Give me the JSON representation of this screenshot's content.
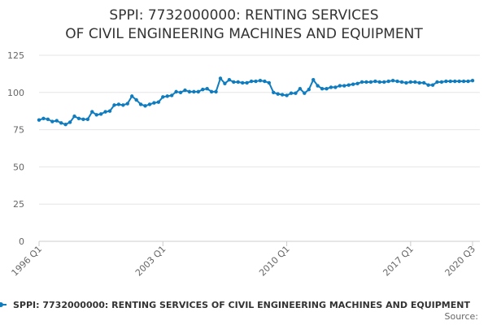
{
  "chart_data": {
    "type": "line",
    "title": "SPPI: 7732000000: RENTING SERVICES OF CIVIL ENGINEERING MACHINES AND EQUIPMENT",
    "source": "Source:",
    "categories": [
      "1996 Q1",
      null,
      null,
      null,
      null,
      null,
      null,
      null,
      null,
      null,
      null,
      null,
      null,
      null,
      null,
      null,
      null,
      null,
      null,
      null,
      null,
      null,
      null,
      null,
      null,
      null,
      null,
      null,
      "2003 Q1",
      null,
      null,
      null,
      null,
      null,
      null,
      null,
      null,
      null,
      null,
      null,
      null,
      null,
      null,
      null,
      null,
      null,
      null,
      null,
      null,
      null,
      null,
      null,
      null,
      null,
      null,
      null,
      "2010 Q1",
      null,
      null,
      null,
      null,
      null,
      null,
      null,
      null,
      null,
      null,
      null,
      null,
      null,
      null,
      null,
      null,
      null,
      null,
      null,
      null,
      null,
      null,
      null,
      null,
      null,
      null,
      null,
      "2017 Q1",
      null,
      null,
      null,
      null,
      null,
      null,
      null,
      null,
      null,
      null,
      null,
      null,
      null,
      "2020 Q3"
    ],
    "series": [
      {
        "name": "SPPI: 7732000000: RENTING SERVICES OF CIVIL ENGINEERING MACHINES AND EQUIPMENT",
        "color": "#0f7cbf",
        "values": [
          81.5,
          82.5,
          82,
          80.5,
          81,
          79.5,
          78.5,
          80,
          84,
          82.5,
          82,
          82,
          87,
          85,
          85.5,
          87,
          87.5,
          91.5,
          92,
          91.5,
          92.5,
          97.5,
          95,
          92,
          91,
          92,
          93,
          93.5,
          97,
          97.5,
          98,
          100.5,
          100,
          101.5,
          100.5,
          100.5,
          100.5,
          102,
          102.5,
          100.5,
          100.5,
          109.5,
          106,
          108.5,
          107,
          107,
          106.5,
          106.5,
          107.5,
          107.5,
          108,
          107.5,
          106.5,
          100,
          99,
          98.5,
          98,
          99.5,
          99.5,
          102.5,
          99.5,
          102,
          108.5,
          104.5,
          102.5,
          102.5,
          103.5,
          103.5,
          104.5,
          104.5,
          105,
          105.5,
          106,
          107,
          107,
          107,
          107.5,
          107,
          107,
          107.5,
          108,
          107.5,
          107,
          106.5,
          107,
          107,
          106.5,
          106.5,
          105,
          105,
          107,
          107,
          107.5,
          107.5,
          107.5,
          107.5,
          107.5,
          107.5,
          108
        ]
      }
    ],
    "ylim": [
      0,
      125
    ],
    "yticks": [
      0,
      25,
      50,
      75,
      100,
      125
    ],
    "grid": true
  }
}
